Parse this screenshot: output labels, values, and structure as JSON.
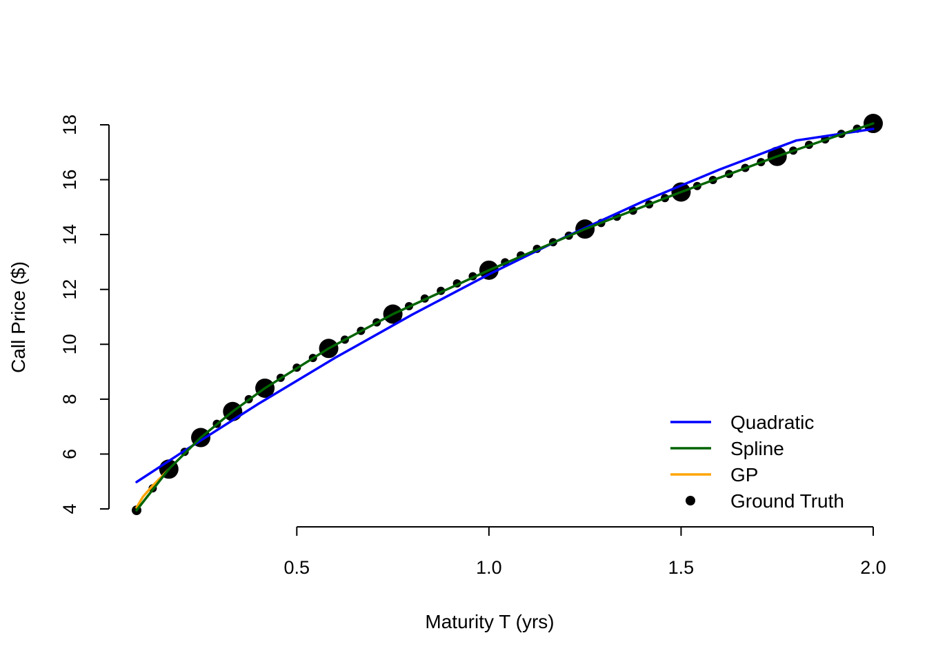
{
  "chart_data": {
    "type": "line",
    "xlabel": "Maturity T (yrs)",
    "ylabel": "Call Price ($)",
    "xlim": [
      0.083,
      2.0
    ],
    "ylim": [
      4,
      18
    ],
    "x_ticks": [
      "0.5",
      "1.0",
      "1.5",
      "2.0"
    ],
    "y_ticks": [
      "4",
      "6",
      "8",
      "10",
      "12",
      "14",
      "16",
      "18"
    ],
    "legend_position": "bottom-right",
    "series": [
      {
        "name": "Quadratic",
        "color": "#0000ff",
        "x": [
          0.083,
          0.2,
          0.4,
          0.6,
          0.8,
          1.0,
          1.2,
          1.4,
          1.6,
          1.8,
          2.0
        ],
        "y": [
          4.98,
          6.05,
          7.83,
          9.51,
          11.08,
          12.55,
          13.92,
          15.2,
          16.37,
          17.43,
          17.85
        ]
      },
      {
        "name": "Spline",
        "color": "#006400",
        "x": [
          0.083,
          0.167,
          0.25,
          0.333,
          0.417,
          0.583,
          0.75,
          1.0,
          1.25,
          1.5,
          1.75,
          2.0
        ],
        "y": [
          3.95,
          5.45,
          6.6,
          7.55,
          8.4,
          9.85,
          11.1,
          12.7,
          14.2,
          15.55,
          16.85,
          18.05
        ]
      },
      {
        "name": "GP",
        "color": "#ffa500",
        "x": [
          0.083,
          0.1,
          0.125,
          0.15,
          0.167
        ],
        "y": [
          4.05,
          4.45,
          4.85,
          5.2,
          5.45
        ]
      },
      {
        "name": "Ground Truth",
        "color": "#000000",
        "marker": "point",
        "x": [
          0.083,
          0.167,
          0.25,
          0.333,
          0.417,
          0.583,
          0.75,
          1.0,
          1.25,
          1.5,
          1.75,
          2.0
        ],
        "y": [
          3.95,
          5.45,
          6.6,
          7.55,
          8.4,
          9.85,
          11.1,
          12.7,
          14.2,
          15.55,
          16.85,
          18.05
        ]
      }
    ],
    "small_points": {
      "x": [
        0.125,
        0.208,
        0.292,
        0.375,
        0.458,
        0.5,
        0.542,
        0.625,
        0.667,
        0.708,
        0.792,
        0.833,
        0.875,
        0.917,
        0.958,
        1.042,
        1.083,
        1.125,
        1.167,
        1.208,
        1.292,
        1.333,
        1.375,
        1.417,
        1.458,
        1.542,
        1.583,
        1.625,
        1.667,
        1.708,
        1.792,
        1.833,
        1.875,
        1.917,
        1.958
      ],
      "y": [
        4.75,
        6.08,
        7.1,
        8.0,
        8.78,
        9.15,
        9.5,
        10.17,
        10.49,
        10.8,
        11.39,
        11.67,
        11.95,
        12.22,
        12.48,
        12.99,
        13.24,
        13.48,
        13.72,
        13.96,
        14.42,
        14.65,
        14.87,
        15.1,
        15.33,
        15.77,
        15.99,
        16.21,
        16.43,
        16.64,
        17.06,
        17.27,
        17.47,
        17.67,
        17.86
      ]
    }
  }
}
